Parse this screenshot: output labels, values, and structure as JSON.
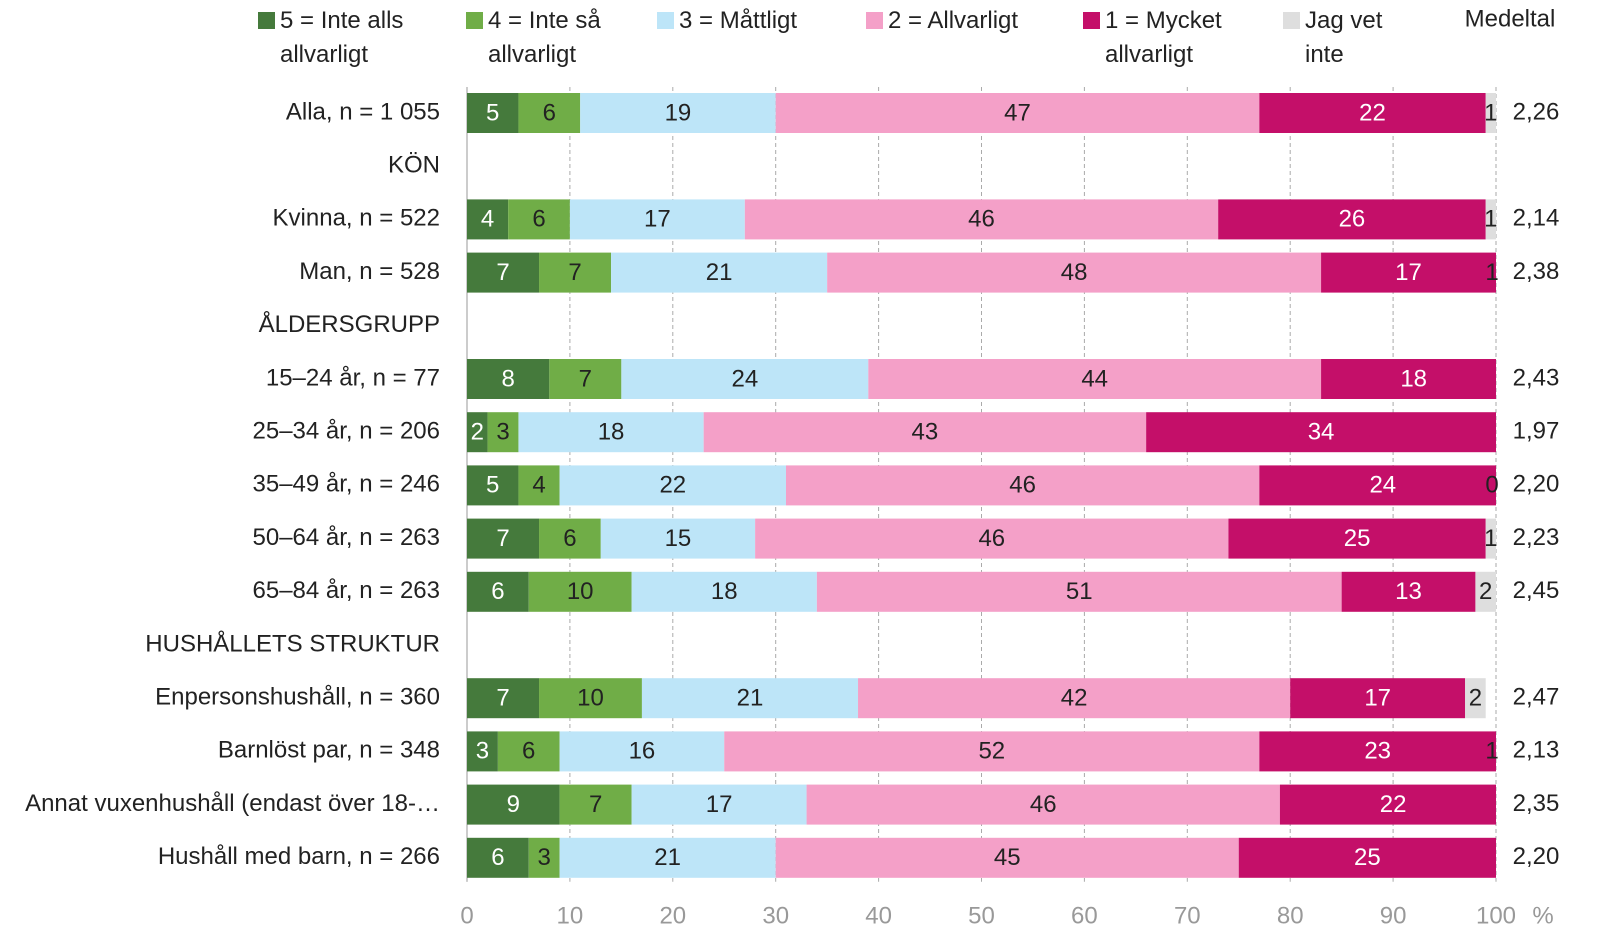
{
  "chart_data": {
    "type": "stacked_bar_horizontal",
    "categories": [
      "Alla, n = 1 055",
      "KÖN",
      "Kvinna, n = 522",
      "Man, n = 528",
      "ÅLDERSGRUPP",
      "15–24 år, n = 77",
      "25–34 år, n = 206",
      "35–49 år, n = 246",
      "50–64 år, n = 263",
      "65–84 år, n = 263",
      "HUSHÅLLETS STRUKTUR",
      "Enpersonshushåll, n = 360",
      "Barnlöst par, n = 348",
      "Annat vuxenhushåll (endast över 18-…",
      "Hushåll med barn, n = 266"
    ],
    "series": [
      {
        "name": "5 = Inte alls allvarligt",
        "color": "#457a3c",
        "values": [
          5,
          null,
          4,
          7,
          null,
          8,
          2,
          5,
          7,
          6,
          null,
          7,
          3,
          9,
          6
        ]
      },
      {
        "name": "4 = Inte så allvarligt",
        "color": "#70ad47",
        "values": [
          6,
          null,
          6,
          7,
          null,
          7,
          3,
          4,
          6,
          10,
          null,
          10,
          6,
          7,
          3
        ]
      },
      {
        "name": "3 = Måttligt",
        "color": "#bde5f8",
        "values": [
          19,
          null,
          17,
          21,
          null,
          24,
          18,
          22,
          15,
          18,
          null,
          21,
          16,
          17,
          21
        ]
      },
      {
        "name": "2 = Allvarligt",
        "color": "#f4a0c8",
        "values": [
          47,
          null,
          46,
          48,
          null,
          44,
          43,
          46,
          46,
          51,
          null,
          42,
          52,
          46,
          45
        ]
      },
      {
        "name": "1 = Mycket allvarligt",
        "color": "#c40f69",
        "values": [
          22,
          null,
          26,
          17,
          null,
          18,
          34,
          24,
          25,
          13,
          null,
          17,
          23,
          22,
          25
        ]
      },
      {
        "name": "Jag vet inte",
        "color": "#dedede",
        "values": [
          1,
          null,
          1,
          1,
          null,
          null,
          null,
          0,
          1,
          2,
          null,
          2,
          1,
          null,
          null
        ]
      }
    ],
    "mean_header": "Medeltal",
    "means": [
      "2,26",
      null,
      "2,14",
      "2,38",
      null,
      "2,43",
      "1,97",
      "2,20",
      "2,23",
      "2,45",
      null,
      "2,47",
      "2,13",
      "2,35",
      "2,20"
    ],
    "xlim": [
      0,
      100
    ],
    "xticks": [
      0,
      10,
      20,
      30,
      40,
      50,
      60,
      70,
      80,
      90,
      100
    ],
    "x_unit": "%",
    "grid": true
  }
}
